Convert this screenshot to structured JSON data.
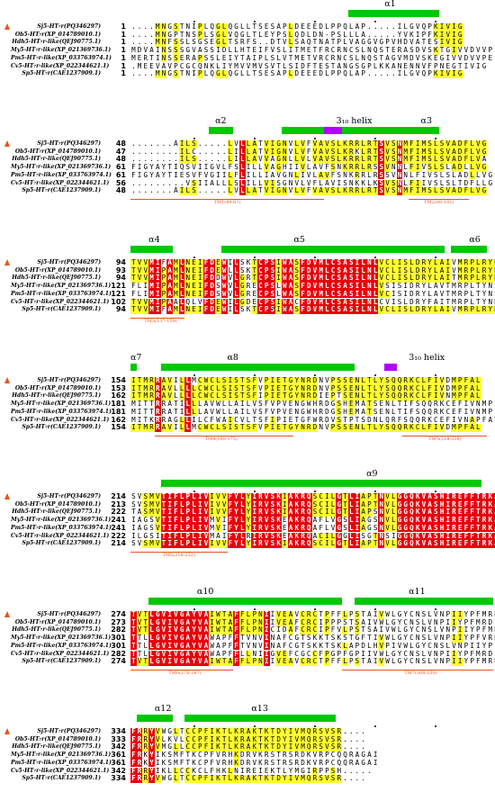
{
  "colors": {
    "identical": "#e8000b",
    "similar": "#ffff30",
    "helix": "#00c800",
    "helix310": "#b000ff",
    "tm": "#e8531c"
  },
  "sequence_names": [
    "Sj5-HT₇r(PQ346297)",
    "Ob5-HT₇r(XP_014789010.1)",
    "Hdh5-HT₇r-like(QEJ90775.1)",
    "My5-HT₇r-like(XP_021369736.1)",
    "Pm5-HT₇r-like(XP_033763974.1)",
    "Cv5-HT₇r-like(XP_022344621.1)",
    "Sp5-HT₇r(CAE1237909.1)"
  ],
  "blocks": [
    {
      "starts": [
        "1",
        "1",
        "1",
        "1",
        "1",
        "1",
        "1"
      ],
      "seqs": [
        "....MNGSTNIPLQGLQGLLTSESAPLDEEEDLPPQLAP.....ILGVQPKIVIG",
        "....MNGPTNSPLSGLVQGLTLEYPSLQDLDN-PSLLLA.....YVKIPFKIVIG",
        "....MNFSSLSGSEGLTSRFS..DTVLSAQTNATPLVAGGVGPVHDVATESIVIG",
        "MDVAINSSSGVASSIDLLHTEIFVSLITMETFRCRNCSLNQSTERASDVSKTGIVVDVVPE",
        "MERTINSSERAPSSLEIYTAIPLSLVTMETVRCRNCSLNQSTAGVMDVSKEGIVVDVVPE",
        ".MEEVAVPCGCQNKLIYMVVMVSVTLSIDFTESTANGSGPLKKANENNVFPNEGTIVIG",
        "....MNGSTNIPLQGLQGLLTSESAPLDEEEDLPPQLAP.....ILGVQPKIVIG"
      ],
      "helices": [
        {
          "label": "α1"
        }
      ],
      "tm": []
    },
    {
      "starts": [
        "48",
        "47",
        "48",
        "61",
        "61",
        "56",
        "48"
      ],
      "seqs": [
        ".......AILS.....LVLLATVIGNVLVFVAVSLKRRLRTSVSNMFIMSLSVADFLVG",
        "........ILC.....LILLATVIGNVLVFVAVSLKRKLRTSVSNMFIMSLSVADFLVG",
        "........ILS.....LILLAVVAGNLLVLVAVSLKRRLRTSVSNMFIMSLSVADFLVA",
        "FIGYAYTIQSVIIGVLFSLILLVAGHIIVLAVFSNKRRLRSSVNNLFIVSLSLADLLVG",
        "FIGYAYTIESVFVGIILFLILLIAVGNLIVLAVFSNKRRLRSSVNNLFIVSLSLADLLVG",
        ".........VSIIALLLSLILLVISGNVLVFLAVISNKKLKSVSNLFIIVSLSLTDFLLG",
        ".......AILS.....LVLLATVIGNVLVFVAVSLKRRLRTSVSNMFIMSLSVADFLVG"
      ],
      "helices": [
        {
          "label": "α2"
        },
        {
          "label": "α3"
        }
      ],
      "helix310": [
        {
          "label": "3₁₀ helix"
        }
      ],
      "tm": [
        {
          "label": "TM1(49-67)"
        },
        {
          "label": "TM2(88-102)"
        }
      ]
    },
    {
      "starts": [
        "94",
        "93",
        "94",
        "121",
        "121",
        "102",
        "94"
      ],
      "seqs": [
        "TVVMIFAMLNEIFDEWILSKTCPSIWASFDVMLCSASILNLVCLISLDRYLAIVMRPLRYNR",
        "TVVMIPAMLNEIFDEWLLSKTCPSIWASFDVMLCSASILNLVCLISLDRYLAIVMRPLRYNR",
        "TVVMIPAMLNEIFDDWVLGRTCPSIWASFDVMLCSASILNLVCLISLDRYLAITMRPLRYNR",
        "FLIMIPAMLNEIFDSWVLGRECPSLWASFDVMLCSASILNLVSISIDRYLAVTMRPLTYNS",
        "FLIMIPAMLNEIFDSWVLGRECPSLWASFDVMLCSASILNLVCISIDRYLAVTMRPLTYNS",
        "TVVMIPAALQLVFDEWILGDECPSIWACFDVMLCSASILNLCVISLDRYFAITMRPLTYNH",
        "TVVMIFAMLNEIFDEWILSKTCPSIWASFDVMLCSASILNLVCLISLDRYLAIVMRPLRYNR"
      ],
      "helices": [
        {
          "label": "α4"
        },
        {
          "label": "α5"
        },
        {
          "label": "α6"
        }
      ],
      "tm": [
        {
          "label": "TM3(137-159)"
        }
      ]
    },
    {
      "starts": [
        "154",
        "153",
        "162",
        "181",
        "181",
        "162",
        "154"
      ],
      "seqs": [
        "ITMRRAVILLMCWCLSISTSFVPIETGYNRDNVPSSENLTLYSQQRKCLFIVDMPFAL",
        "ITMRRAVLLLLCWCLSISTSFVPIETGYNRDNVPSSENLTLYSQQRKCLFIVDMPFAL",
        "ITMRRAVLLLLCWCLSISTSFIPIETGYNRDIEPTSENLTLYSQQRKCLFIVNMPFAL",
        "MITTRRATILLLAVWLLAILVSFVPVENGWHRDGSHEMATSENLTIFSQQRKCEFIVNMPFYAV",
        "MITTRRATILLLAVWLLAILVSFVPVENGWHRDGSHEMATSENLTIFSQQRKCEFIVNMPFYAV",
        "MITKRRAGLLILCFWAICVLTSFIPIETGFWRDVSTPTSDNLQRFSQQRKCEFIVNAPFAVL",
        "ITMRRAVILLMCWCLSISTSFVPIETGYNRDNVPSSENLTLYSQQRKCLFIVDMPFAL"
      ],
      "helices": [
        {
          "label": "α7"
        },
        {
          "label": "α8"
        }
      ],
      "helix310": [
        {
          "label": "3₁₀ helix"
        }
      ],
      "tm": [
        {
          "label": "TM4(180-175)"
        },
        {
          "label": "TM5(218-238)"
        }
      ]
    },
    {
      "starts": [
        "214",
        "213",
        "222",
        "241",
        "241",
        "222",
        "214"
      ],
      "seqs": [
        "SVSMVTIFLPLIVIVVFYLYIRVSKIAKRQSCILGTLIAPTNVLGGQKVASHIREFFTRKA",
        "SVSMVTIFLPLIVIVVFYLYIRVSKIAKRQSCILGTLIAPTNVLGGQKVASHIREFFTRKA",
        "TASMVTIFLPLIVIVVFYLYIRVSKIAKRQSCILGTLIAPSNVLGGQKVASHIREFFTRKA",
        "IAGSVTIFLPLIVMVIFYLYIRVSKEAKRQAFLVGSLIAGSNVLGGQKVASHIREFFTRKA",
        "IAGSVTIFLPLIVMVIFYLYIRVSKEAKRQAFLVGSLIAGSNVLGGQKVASHIREFFTRKA",
        "ILGSITIFLPLIVMAIFYLRIRVSKEAKRQACILGGLISGTNSIGGQKVASHIREFFTRKA",
        "SVSMVTIFLPLIVIVVFYLYIRVSKIAKRQSCILGTLIAPTNVLGGQKVASHIREFFTRKA"
      ],
      "helices": [
        {
          "label": "α9"
        }
      ],
      "tm": [
        {
          "label": "TM5(218-232)"
        }
      ]
    },
    {
      "starts": [
        "274",
        "273",
        "282",
        "301",
        "301",
        "282",
        "274"
      ],
      "seqs": [
        "TVTLGVIVGAYVAIWTAFFLPNIIVEAVCRCTPFFLPSTAIVWLGYCNSLVNPIIYPFMRD",
        "TVTLGVIVGAYVAIWTAFFLPNIIVEAFCRCIPPPSTSAIVWLGYCNSLVNPIIYPFMRD",
        "TVTLGVIVGAYVAIWTAFFLPNICIDAFCRCIPFVLPSTSAIVWLGYCNSLVNPIIYPFMRD",
        "TTLLGVIVGAYVAWAPFFTVNVINAFCGTSKKTSKSTGFTIVWLGYCNSLVNPIIYPFVRD",
        "TTLLGVIVGAYVAWAPFFTVNVINAFCGTSKKTSKLAPDLHVPIVWLGYCNSLVNPIIYPFVRD",
        "TTLLGVIVGAYVAWAPFFLLNIIGVEFCGCCFPGPFGPIIVWLGYCNSLVNPIIYPFMRD",
        "TVTLGVIVGAYVAIWTAFFLPNIIVEAVCRCTPFFLPSTAIVWLGYCNSLVNPIIYPFMRD"
      ],
      "helices": [
        {
          "label": "α10"
        },
        {
          "label": "α11"
        }
      ],
      "tm": [
        {
          "label": "TM6(270-297)"
        },
        {
          "label": "TM7(308-330)"
        }
      ]
    },
    {
      "starts": [
        "334",
        "333",
        "342",
        "361",
        "361",
        "342",
        "334"
      ],
      "seqs": [
        "FRRYVWGLTCCPFIKTLKRAKTKTDYIVMQRSVSR....",
        "FRRYVLKVLCCPFIKTLKRAKTKTDYIVMQRSVSR....",
        "FRRYVMGLLCCPFIKTLKRAKTKTDYIVMQRSVSR....",
        "FRKYIKSMFTKCPFVRHKDRVKRSTRSRDKVRPCQQRAGAI",
        "FRKYIKSMFTKCPFVRHKDRVKRSTRSRDKVRPCQQRAGAI",
        "FRRYIKLLCCKCLFHKLNIREIEKTLYMGIRPPSH.....",
        "FRRYVWGLTCCPFIKTLKRAKTKTDYIVMQRSVSR...."
      ],
      "helices": [
        {
          "label": "α12"
        },
        {
          "label": "α13"
        }
      ],
      "tm": []
    }
  ]
}
